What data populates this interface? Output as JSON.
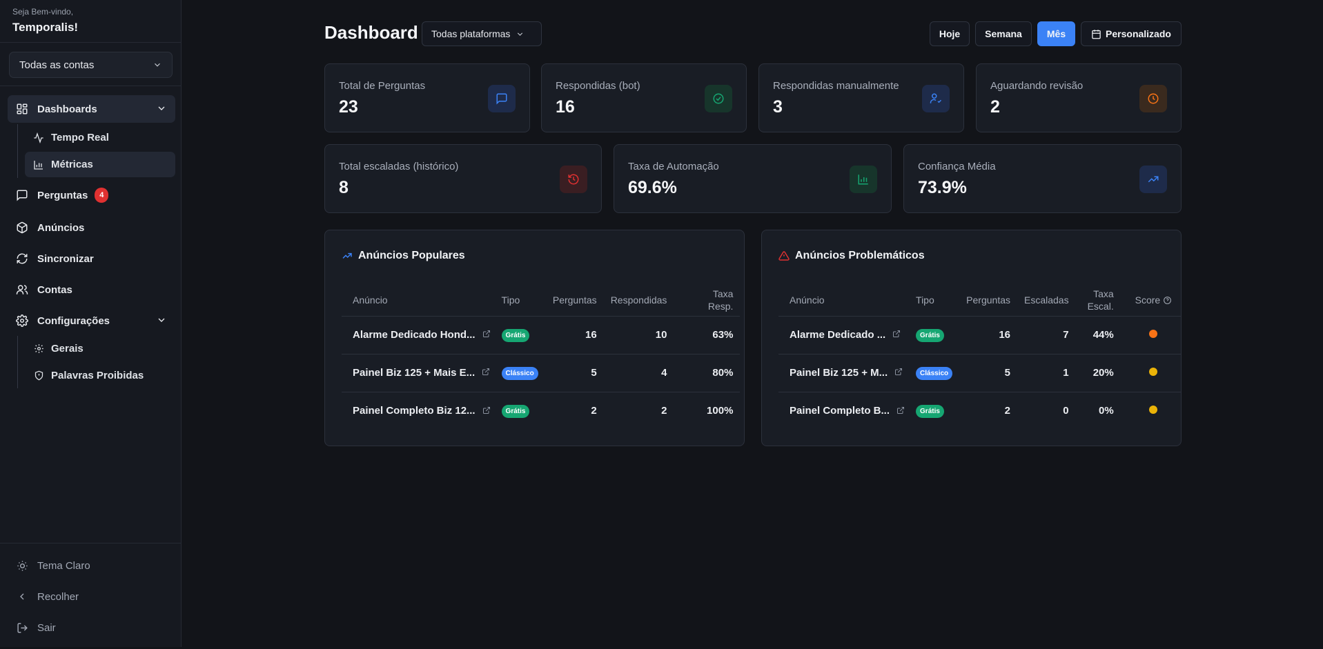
{
  "sidebar": {
    "greeting": "Seja Bem-vindo,",
    "user_name": "Temporalis!",
    "account_select": "Todas as contas",
    "nav": {
      "dashboards": "Dashboards",
      "tempo_real": "Tempo Real",
      "metricas": "Métricas",
      "perguntas": "Perguntas",
      "perguntas_badge": "4",
      "anuncios": "Anúncios",
      "sincronizar": "Sincronizar",
      "contas": "Contas",
      "configuracoes": "Configurações",
      "gerais": "Gerais",
      "palavras_proibidas": "Palavras Proibidas"
    },
    "footer": {
      "tema": "Tema Claro",
      "recolher": "Recolher",
      "sair": "Sair"
    }
  },
  "header": {
    "title": "Dashboard",
    "platform_select": "Todas plataformas",
    "periods": {
      "hoje": "Hoje",
      "semana": "Semana",
      "mes": "Mês",
      "personalizado": "Personalizado"
    },
    "selected_period": "Mês"
  },
  "stats": {
    "total_perguntas": {
      "label": "Total de Perguntas",
      "value": "23"
    },
    "respondidas_bot": {
      "label": "Respondidas (bot)",
      "value": "16"
    },
    "respondidas_manual": {
      "label": "Respondidas manualmente",
      "value": "3"
    },
    "aguardando": {
      "label": "Aguardando revisão",
      "value": "2"
    },
    "escaladas": {
      "label": "Total escaladas (histórico)",
      "value": "8"
    },
    "automacao": {
      "label": "Taxa de Automação",
      "value": "69.6%"
    },
    "confianca": {
      "label": "Confiança Média",
      "value": "73.9%"
    }
  },
  "popular": {
    "title": "Anúncios Populares",
    "headers": {
      "anuncio": "Anúncio",
      "tipo": "Tipo",
      "perguntas": "Perguntas",
      "respondidas": "Respondidas",
      "taxa_l1": "Taxa",
      "taxa_l2": "Resp."
    },
    "rows": [
      {
        "anuncio": "Alarme Dedicado Hond...",
        "tipo": "Grátis",
        "perguntas": "16",
        "respondidas": "10",
        "taxa": "63%"
      },
      {
        "anuncio": "Painel Biz 125 + Mais E...",
        "tipo": "Clássico",
        "perguntas": "5",
        "respondidas": "4",
        "taxa": "80%"
      },
      {
        "anuncio": "Painel Completo Biz 12...",
        "tipo": "Grátis",
        "perguntas": "2",
        "respondidas": "2",
        "taxa": "100%"
      }
    ]
  },
  "problem": {
    "title": "Anúncios Problemáticos",
    "headers": {
      "anuncio": "Anúncio",
      "tipo": "Tipo",
      "perguntas": "Perguntas",
      "escaladas": "Escaladas",
      "taxa_l1": "Taxa",
      "taxa_l2": "Escal.",
      "score": "Score"
    },
    "rows": [
      {
        "anuncio": "Alarme Dedicado ...",
        "tipo": "Grátis",
        "perguntas": "16",
        "escaladas": "7",
        "taxa": "44%",
        "score_color": "#f97316"
      },
      {
        "anuncio": "Painel Biz 125 + M...",
        "tipo": "Clássico",
        "perguntas": "5",
        "escaladas": "1",
        "taxa": "20%",
        "score_color": "#eab308"
      },
      {
        "anuncio": "Painel Completo B...",
        "tipo": "Grátis",
        "perguntas": "2",
        "escaladas": "0",
        "taxa": "0%",
        "score_color": "#eab308"
      }
    ]
  },
  "colors": {
    "accent": "#3b82f6",
    "success": "#16a672",
    "danger": "#e03131",
    "warning": "#f97316"
  }
}
